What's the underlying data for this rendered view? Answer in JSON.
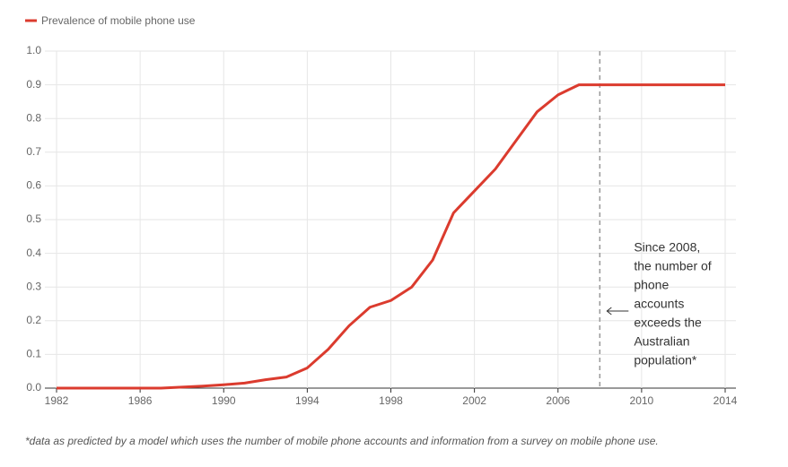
{
  "chart_data": {
    "type": "line",
    "x": [
      1982,
      1983,
      1984,
      1985,
      1986,
      1987,
      1988,
      1989,
      1990,
      1991,
      1992,
      1993,
      1994,
      1995,
      1996,
      1997,
      1998,
      1999,
      2000,
      2001,
      2002,
      2003,
      2004,
      2005,
      2006,
      2007,
      2008,
      2009,
      2010,
      2011,
      2012,
      2013,
      2014
    ],
    "series": [
      {
        "name": "Prevalence of mobile phone use",
        "color": "#db3b2e",
        "values": [
          0,
          0,
          0,
          0,
          0,
          0,
          0.003,
          0.006,
          0.01,
          0.015,
          0.025,
          0.033,
          0.06,
          0.115,
          0.185,
          0.24,
          0.26,
          0.3,
          0.38,
          0.52,
          0.585,
          0.65,
          0.735,
          0.82,
          0.87,
          0.9,
          0.9,
          0.9,
          0.9,
          0.9,
          0.9,
          0.9,
          0.9
        ]
      }
    ],
    "xlim": [
      1982,
      2014
    ],
    "xticks": [
      1982,
      1986,
      1990,
      1994,
      1998,
      2002,
      2006,
      2010,
      2014
    ],
    "ylim": [
      0,
      1
    ],
    "yticks": [
      {
        "value": 0,
        "label": "0.0"
      },
      0.1,
      0.2,
      0.3,
      0.4,
      0.5,
      0.6,
      0.7,
      0.8,
      0.9,
      {
        "value": 1,
        "label": "1.0"
      }
    ],
    "grid": true,
    "legend": "top-left",
    "annotation": {
      "x": 2008,
      "lines": [
        "Since 2008,",
        "the number of",
        "phone",
        "accounts",
        "exceeds the",
        "Australian",
        "population*"
      ]
    },
    "footnote": "*data as predicted by a model which uses the number of mobile phone accounts and information from a survey on mobile phone use."
  }
}
